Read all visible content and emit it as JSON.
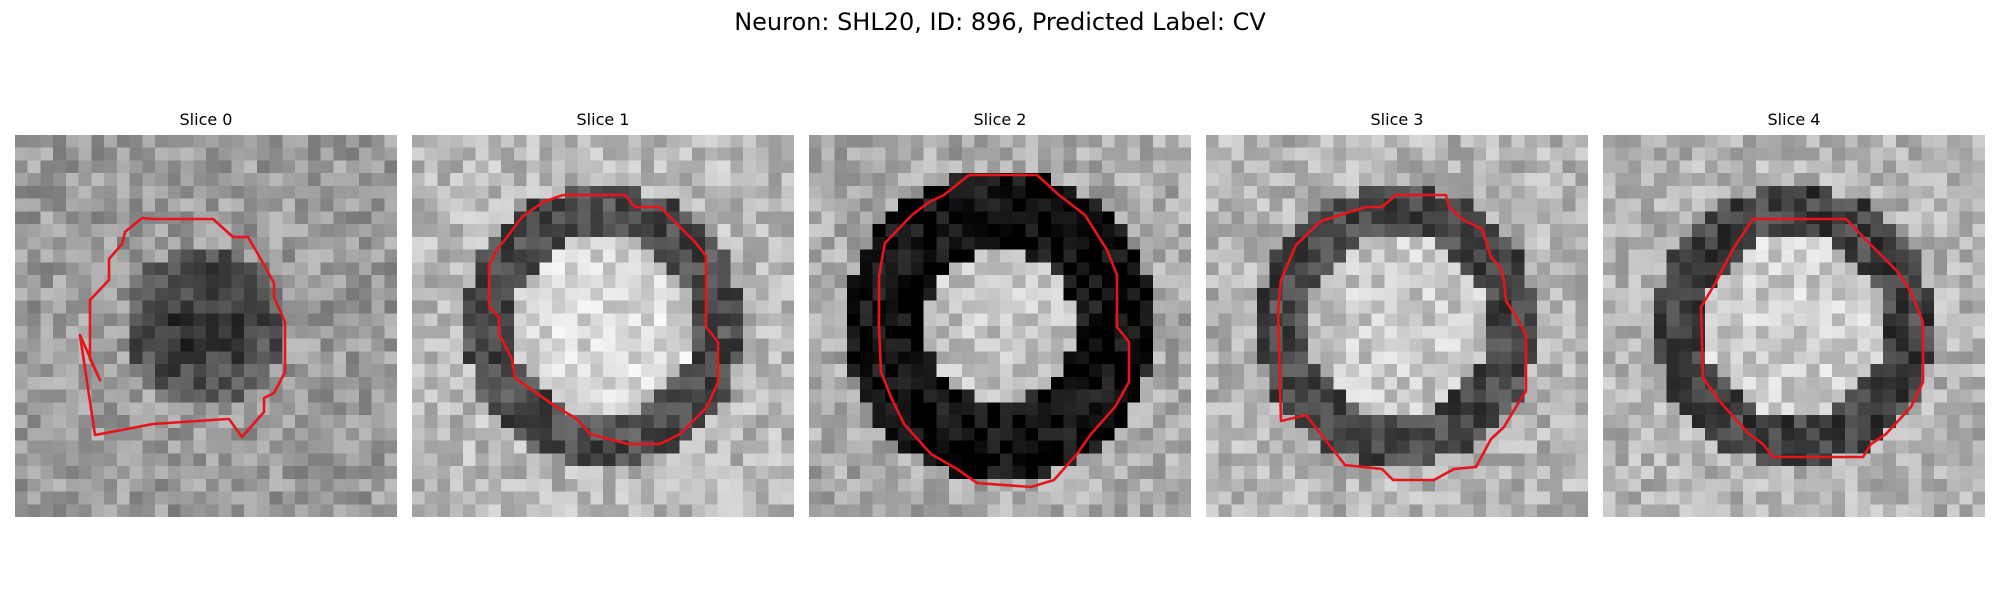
{
  "figure": {
    "title": "Neuron: SHL20, ID: 896, Predicted Label: CV",
    "contour_color": "#e8141c"
  },
  "panels": [
    {
      "title": "Slice 0",
      "tone": {
        "ring": 40,
        "center": 60,
        "bg": 175,
        "seed": 11
      }
    },
    {
      "title": "Slice 1",
      "tone": {
        "ring": 75,
        "center": 215,
        "bg": 185,
        "seed": 23
      }
    },
    {
      "title": "Slice 2",
      "tone": {
        "ring": 12,
        "center": 195,
        "bg": 170,
        "seed": 37
      }
    },
    {
      "title": "Slice 3",
      "tone": {
        "ring": 70,
        "center": 200,
        "bg": 180,
        "seed": 41
      }
    },
    {
      "title": "Slice 4",
      "tone": {
        "ring": 65,
        "center": 205,
        "bg": 180,
        "seed": 53
      }
    }
  ]
}
